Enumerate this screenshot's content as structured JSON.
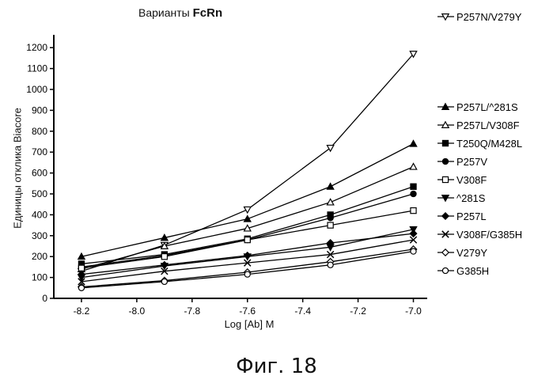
{
  "title": {
    "prefix": "Варианты",
    "bold": "FcRn"
  },
  "caption": "Фиг. 18",
  "chart_data": {
    "type": "line",
    "title": "Варианты FcRn",
    "xlabel": "Log [Ab] M",
    "ylabel": "Единицы отклика Biacore",
    "x": [
      -8.2,
      -7.9,
      -7.6,
      -7.3,
      -7.0
    ],
    "xlim": [
      -8.3,
      -6.95
    ],
    "ylim": [
      0,
      1250
    ],
    "x_ticks": [
      "-8.2",
      "-8.0",
      "-7.8",
      "-7.6",
      "-7.4",
      "-7.2",
      "-7.0"
    ],
    "y_ticks": [
      "0",
      "100",
      "200",
      "300",
      "400",
      "500",
      "600",
      "700",
      "800",
      "900",
      "1000",
      "1100",
      "1200"
    ],
    "grid": false,
    "legend_position": "right",
    "series": [
      {
        "name": "P257N/V279Y",
        "marker": "triangle-down-open",
        "values": [
          130,
          255,
          425,
          720,
          1170
        ]
      },
      {
        "name": "P257L/^281S",
        "marker": "triangle-up-filled",
        "values": [
          200,
          290,
          380,
          535,
          740
        ]
      },
      {
        "name": "P257L/V308F",
        "marker": "triangle-up-open",
        "values": [
          140,
          250,
          335,
          460,
          630
        ]
      },
      {
        "name": "T250Q/M428L",
        "marker": "square-filled",
        "values": [
          165,
          210,
          285,
          400,
          535
        ]
      },
      {
        "name": "P257V",
        "marker": "circle-filled",
        "values": [
          150,
          205,
          280,
          385,
          500
        ]
      },
      {
        "name": "V308F",
        "marker": "square-open",
        "values": [
          145,
          200,
          280,
          350,
          420
        ]
      },
      {
        "name": "^281S",
        "marker": "triangle-down-filled",
        "values": [
          100,
          155,
          200,
          245,
          330
        ]
      },
      {
        "name": "P257L",
        "marker": "diamond-filled",
        "values": [
          115,
          160,
          205,
          265,
          310
        ]
      },
      {
        "name": "V308F/G385H",
        "marker": "x",
        "values": [
          80,
          130,
          170,
          210,
          280
        ]
      },
      {
        "name": "V279Y",
        "marker": "diamond-open",
        "values": [
          55,
          85,
          125,
          175,
          235
        ]
      },
      {
        "name": "G385H",
        "marker": "circle-open",
        "values": [
          50,
          80,
          115,
          160,
          225
        ]
      }
    ]
  }
}
